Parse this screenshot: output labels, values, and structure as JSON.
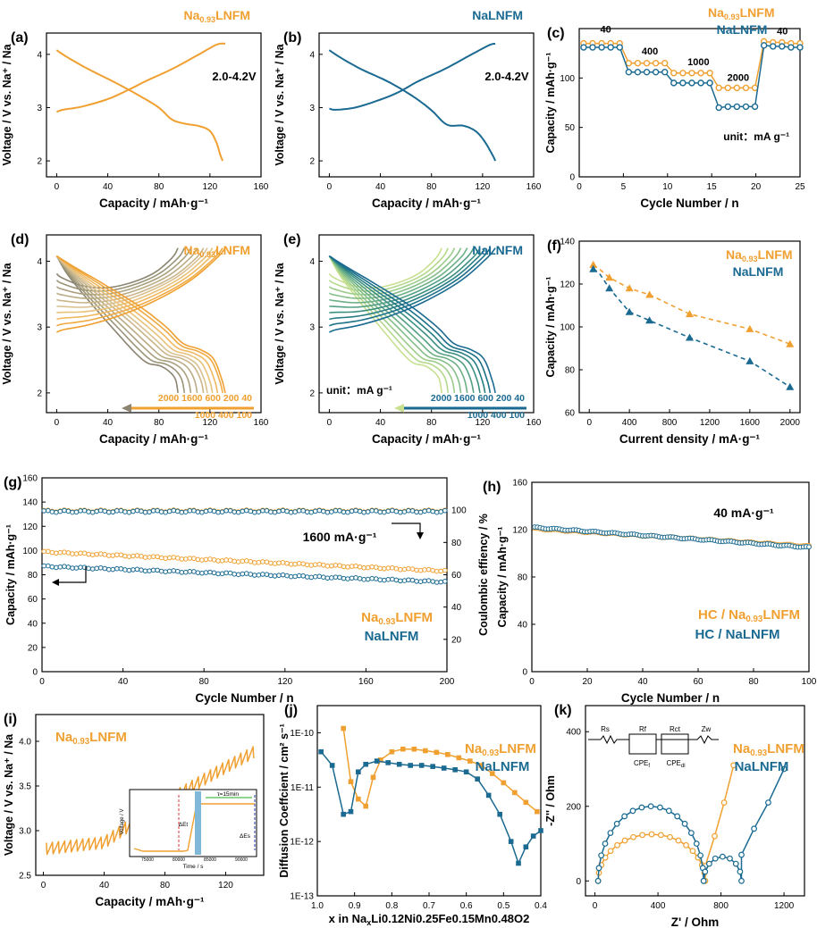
{
  "colors": {
    "orange": "#F0A030",
    "blue": "#1A6A92",
    "axis": "#000000"
  },
  "chart_data": [
    {
      "id": "a",
      "type": "line",
      "label": "(a)",
      "xlabel": "Capacity / mAh·g⁻¹",
      "ylabel": "Voltage / V vs. Na⁺ / Na",
      "xlim": [
        -8,
        160
      ],
      "ylim": [
        1.7,
        4.4
      ],
      "xticks": [
        0,
        40,
        80,
        120,
        160
      ],
      "yticks": [
        2,
        3,
        4
      ],
      "legend": {
        "text": "Na",
        "sub": "0.93",
        "rest": "LNFM"
      },
      "annotation": "2.0-4.2V",
      "series": [
        {
          "name": "charge",
          "color": "orange",
          "points": [
            [
              0,
              2.92
            ],
            [
              5,
              2.96
            ],
            [
              20,
              3.02
            ],
            [
              40,
              3.16
            ],
            [
              55,
              3.32
            ],
            [
              70,
              3.5
            ],
            [
              90,
              3.72
            ],
            [
              110,
              3.98
            ],
            [
              125,
              4.18
            ],
            [
              132,
              4.2
            ]
          ]
        },
        {
          "name": "discharge",
          "color": "orange",
          "points": [
            [
              0,
              4.08
            ],
            [
              8,
              3.95
            ],
            [
              25,
              3.72
            ],
            [
              45,
              3.48
            ],
            [
              65,
              3.22
            ],
            [
              80,
              3.0
            ],
            [
              90,
              2.78
            ],
            [
              100,
              2.7
            ],
            [
              112,
              2.65
            ],
            [
              120,
              2.56
            ],
            [
              125,
              2.35
            ],
            [
              128,
              2.12
            ],
            [
              130,
              2.0
            ]
          ]
        }
      ]
    },
    {
      "id": "b",
      "type": "line",
      "label": "(b)",
      "xlabel": "Capacity / mAh·g⁻¹",
      "ylabel": "Voltage / V vs. Na⁺ / Na",
      "xlim": [
        -8,
        160
      ],
      "ylim": [
        1.7,
        4.4
      ],
      "xticks": [
        0,
        40,
        80,
        120,
        160
      ],
      "yticks": [
        2,
        3,
        4
      ],
      "legend": {
        "text": "NaLNFM"
      },
      "annotation": "2.0-4.2V",
      "series": [
        {
          "name": "charge",
          "color": "blue",
          "points": [
            [
              0,
              2.98
            ],
            [
              5,
              2.96
            ],
            [
              20,
              3.0
            ],
            [
              40,
              3.15
            ],
            [
              55,
              3.3
            ],
            [
              70,
              3.5
            ],
            [
              90,
              3.72
            ],
            [
              110,
              3.98
            ],
            [
              125,
              4.17
            ],
            [
              130,
              4.2
            ]
          ]
        },
        {
          "name": "discharge",
          "color": "blue",
          "points": [
            [
              0,
              4.08
            ],
            [
              8,
              3.95
            ],
            [
              25,
              3.72
            ],
            [
              45,
              3.5
            ],
            [
              65,
              3.22
            ],
            [
              80,
              2.95
            ],
            [
              92,
              2.68
            ],
            [
              105,
              2.66
            ],
            [
              115,
              2.55
            ],
            [
              122,
              2.35
            ],
            [
              128,
              2.1
            ],
            [
              130,
              2.0
            ]
          ]
        }
      ]
    },
    {
      "id": "c",
      "type": "scatter",
      "label": "(c)",
      "xlabel": "Cycle Number / n",
      "ylabel": "Capacity / mAh·g⁻¹",
      "xlim": [
        0,
        25
      ],
      "ylim": [
        0,
        150
      ],
      "xticks": [
        0,
        5,
        10,
        15,
        20,
        25
      ],
      "yticks": [
        0,
        50,
        100
      ],
      "legend": [
        {
          "text": "Na",
          "sub": "0.93",
          "rest": "LNFM",
          "color": "orange"
        },
        {
          "text": "NaLNFM",
          "color": "blue"
        }
      ],
      "rate_labels": [
        "40",
        "400",
        "1000",
        "2000",
        "40"
      ],
      "unit": "unit：mA g⁻¹",
      "series": [
        {
          "name": "Na0.93LNFM",
          "color": "orange",
          "values": [
            135,
            135,
            135,
            135,
            135,
            115,
            115,
            115,
            115,
            115,
            105,
            105,
            105,
            105,
            105,
            90,
            90,
            90,
            90,
            90,
            137,
            136,
            136,
            135,
            135
          ]
        },
        {
          "name": "NaLNFM",
          "color": "blue",
          "values": [
            131,
            131,
            131,
            131,
            131,
            106,
            106,
            106,
            106,
            106,
            95,
            95,
            95,
            95,
            95,
            70,
            71,
            71,
            71,
            71,
            133,
            132,
            132,
            131,
            131
          ]
        }
      ]
    },
    {
      "id": "d",
      "type": "line",
      "label": "(d)",
      "xlabel": "Capacity / mAh·g⁻¹",
      "ylabel": "Voltage / V vs. Na⁺ / Na",
      "xlim": [
        -8,
        160
      ],
      "ylim": [
        1.7,
        4.4
      ],
      "xticks": [
        0,
        40,
        80,
        120,
        160
      ],
      "yticks": [
        2,
        3,
        4
      ],
      "legend": {
        "text": "Na",
        "sub": "0.93",
        "rest": "LNFM"
      },
      "rates_top": "2000  1600   600   200   40",
      "rates_bottom": "1000   400   100",
      "series_caps": [
        95,
        100,
        105,
        110,
        115,
        118,
        122,
        126,
        130,
        132
      ],
      "series_colors": [
        "#8A8470",
        "#9A9478",
        "#AAA07E",
        "#BAAB84",
        "#CAB58A",
        "#D9C090",
        "#E8C27A",
        "#EFB860",
        "#F0AA44",
        "#F0A030"
      ]
    },
    {
      "id": "e",
      "type": "line",
      "label": "(e)",
      "xlabel": "Capacity / mAh·g⁻¹",
      "ylabel": "Voltage / V vs. Na⁺ / Na",
      "xlim": [
        -8,
        160
      ],
      "ylim": [
        1.7,
        4.4
      ],
      "xticks": [
        0,
        40,
        80,
        120,
        160
      ],
      "yticks": [
        2,
        3,
        4
      ],
      "legend": {
        "text": "NaLNFM"
      },
      "unit": "unit：mA g⁻¹",
      "rates_top": "2000  1600   600   200   40",
      "rates_bottom": "1000   400   100",
      "series_caps": [
        88,
        93,
        98,
        103,
        108,
        113,
        118,
        122,
        126,
        130
      ],
      "series_colors": [
        "#C8E090",
        "#B4D88C",
        "#9CCC8A",
        "#84BE88",
        "#6CB086",
        "#54A084",
        "#3C9082",
        "#287E84",
        "#1C7088",
        "#1A6A92"
      ]
    },
    {
      "id": "f",
      "type": "line",
      "label": "(f)",
      "xlabel": "Current density  / mA·g⁻¹",
      "ylabel": "Capacity / mAh·g⁻¹",
      "xlim": [
        -100,
        2100
      ],
      "ylim": [
        60,
        140
      ],
      "xticks": [
        0,
        400,
        800,
        1200,
        1600,
        2000
      ],
      "yticks": [
        60,
        80,
        100,
        120,
        140
      ],
      "legend": [
        {
          "text": "Na",
          "sub": "0.93",
          "rest": "LNFM",
          "color": "orange"
        },
        {
          "text": "NaLNFM",
          "color": "blue"
        }
      ],
      "x": [
        40,
        100,
        200,
        400,
        600,
        1000,
        1600,
        2000
      ],
      "series": [
        {
          "name": "Na0.93LNFM",
          "color": "orange",
          "values": [
            129,
            127,
            123,
            118,
            115,
            106,
            99,
            92
          ]
        },
        {
          "name": "NaLNFM",
          "color": "blue",
          "values": [
            127,
            125,
            118,
            107,
            103,
            95,
            84,
            72
          ]
        }
      ]
    },
    {
      "id": "g",
      "type": "scatter",
      "label": "(g)",
      "xlabel": "Cycle Number / n",
      "ylabel": "Capacity / mAh·g⁻¹",
      "ylabel2": "Coulombic effiency / %",
      "xlim": [
        0,
        200
      ],
      "ylim": [
        0,
        160
      ],
      "y2lim": [
        0,
        120
      ],
      "xticks": [
        0,
        40,
        80,
        120,
        160,
        200
      ],
      "yticks": [
        0,
        20,
        40,
        60,
        80,
        100,
        120,
        140,
        160
      ],
      "y2ticks": [
        20,
        40,
        60,
        80,
        100
      ],
      "legend": [
        {
          "text": "Na",
          "sub": "0.93",
          "rest": "LNFM",
          "color": "orange"
        },
        {
          "text": "NaLNFM",
          "color": "blue"
        }
      ],
      "annotation": "1600 mA·g⁻¹",
      "series": [
        {
          "name": "Na0.93LNFM capacity",
          "color": "orange",
          "start": 99,
          "end": 83
        },
        {
          "name": "NaLNFM capacity",
          "color": "blue",
          "start": 87,
          "end": 74
        },
        {
          "name": "Na0.93LNFM CE",
          "color": "orange",
          "start": 99.5,
          "end": 99.5
        },
        {
          "name": "NaLNFM CE",
          "color": "blue",
          "start": 99.2,
          "end": 99.2
        }
      ]
    },
    {
      "id": "h",
      "type": "scatter",
      "label": "(h)",
      "xlabel": "Cycle Number / n",
      "ylabel": "Capacity / mAh·g⁻¹",
      "xlim": [
        0,
        100
      ],
      "ylim": [
        0,
        160
      ],
      "xticks": [
        0,
        20,
        40,
        60,
        80,
        100
      ],
      "yticks": [
        0,
        40,
        80,
        120,
        160
      ],
      "legend": [
        {
          "text": "HC / Na",
          "sub": "0.93",
          "rest": "LNFM",
          "color": "orange"
        },
        {
          "text": "HC / NaLNFM",
          "color": "blue"
        }
      ],
      "annotation": "40 mA·g⁻¹",
      "series": [
        {
          "name": "HC/Na0.93LNFM",
          "color": "orange",
          "start": 121,
          "end": 106
        },
        {
          "name": "HC/NaLNFM",
          "color": "blue",
          "start": 122,
          "end": 105
        }
      ]
    },
    {
      "id": "i",
      "type": "line",
      "label": "(i)",
      "xlabel": "Capacity / mAh·g⁻¹",
      "ylabel": "Voltage / V vs. Na⁺ / Na",
      "xlim": [
        -5,
        145
      ],
      "ylim": [
        2.5,
        4.3
      ],
      "xticks": [
        0,
        40,
        80,
        120
      ],
      "yticks": [
        2.5,
        3.0,
        3.5,
        4.0
      ],
      "legend": {
        "text": "Na",
        "sub": "0.93",
        "rest": "LNFM"
      },
      "inset": {
        "ylabel": "Voltage / V",
        "xlabel": "Time / s",
        "xticks": [
          "75000",
          "80000",
          "85000",
          "90000"
        ],
        "tau": "τ=15min",
        "de_t": "ΔEt",
        "de_s": "ΔEs"
      }
    },
    {
      "id": "j",
      "type": "line",
      "label": "(j)",
      "xlabel": "x in Na",
      "xlabel_rest": "Li0.12Ni0.25Fe0.15Mn0.48O2",
      "ylabel": "Diffusion Coeffcient / cm² s⁻¹",
      "xlim": [
        1.0,
        0.4
      ],
      "ylim": [
        -13,
        -9.5
      ],
      "xticks": [
        1.0,
        0.9,
        0.8,
        0.7,
        0.6,
        0.5,
        0.4
      ],
      "yticks": [
        "1E-10",
        "1E-11",
        "1E-12",
        "1E-13"
      ],
      "legend": [
        {
          "text": "Na",
          "sub": "0.93",
          "rest": "LNFM",
          "color": "orange"
        },
        {
          "text": "NaLNFM",
          "color": "blue"
        }
      ],
      "series": [
        {
          "name": "Na0.93LNFM",
          "color": "orange",
          "x": [
            0.93,
            0.91,
            0.89,
            0.87,
            0.85,
            0.83,
            0.8,
            0.77,
            0.74,
            0.71,
            0.68,
            0.65,
            0.62,
            0.59,
            0.56,
            0.53,
            0.5,
            0.47,
            0.44,
            0.41
          ],
          "log": [
            -9.92,
            -10.9,
            -11.22,
            -11.35,
            -10.82,
            -10.5,
            -10.35,
            -10.3,
            -10.3,
            -10.33,
            -10.36,
            -10.4,
            -10.46,
            -10.52,
            -10.6,
            -10.75,
            -10.92,
            -11.1,
            -11.28,
            -11.45
          ]
        },
        {
          "name": "NaLNFM",
          "color": "blue",
          "x": [
            0.99,
            0.96,
            0.93,
            0.91,
            0.89,
            0.87,
            0.84,
            0.81,
            0.78,
            0.75,
            0.72,
            0.69,
            0.66,
            0.63,
            0.6,
            0.57,
            0.54,
            0.51,
            0.48,
            0.46,
            0.44,
            0.42,
            0.4
          ],
          "log": [
            -10.35,
            -10.6,
            -11.5,
            -11.45,
            -10.72,
            -10.58,
            -10.52,
            -10.55,
            -10.58,
            -10.6,
            -10.6,
            -10.62,
            -10.65,
            -10.68,
            -10.72,
            -10.85,
            -11.15,
            -11.5,
            -12.0,
            -12.4,
            -12.1,
            -11.9,
            -11.8
          ]
        }
      ]
    },
    {
      "id": "k",
      "type": "line",
      "label": "(k)",
      "xlabel": "Z' / Ohm",
      "ylabel": "-Z'' / Ohm",
      "xlim": [
        -60,
        1330
      ],
      "ylim": [
        -40,
        470
      ],
      "xticks": [
        0,
        400,
        800,
        1200
      ],
      "yticks": [
        0,
        200,
        400
      ],
      "legend": [
        {
          "text": "Na",
          "sub": "0.93",
          "rest": "LNFM",
          "color": "orange"
        },
        {
          "text": "NaLNFM",
          "color": "blue"
        }
      ],
      "circuit": {
        "rs": "Rs",
        "rf": "Rf",
        "rct": "Rct",
        "zw": "Zw",
        "cpe1": "CPE",
        "cpe1sub": "f",
        "cpe2": "CPE",
        "cpe2sub": "dl"
      },
      "series": [
        {
          "name": "Na0.93LNFM",
          "color": "orange",
          "arc1": [
            20,
            700
          ],
          "arc1h": 125,
          "tail": [
            [
              700,
              40
            ],
            [
              760,
              120
            ],
            [
              820,
              210
            ],
            [
              880,
              310
            ]
          ]
        },
        {
          "name": "NaLNFM",
          "color": "blue",
          "arc1": [
            20,
            690
          ],
          "arc1h": 200,
          "arc2": [
            690,
            930
          ],
          "arc2h": 65,
          "tail": [
            [
              930,
              70
            ],
            [
              1010,
              140
            ],
            [
              1100,
              210
            ],
            [
              1200,
              300
            ]
          ]
        }
      ]
    }
  ]
}
